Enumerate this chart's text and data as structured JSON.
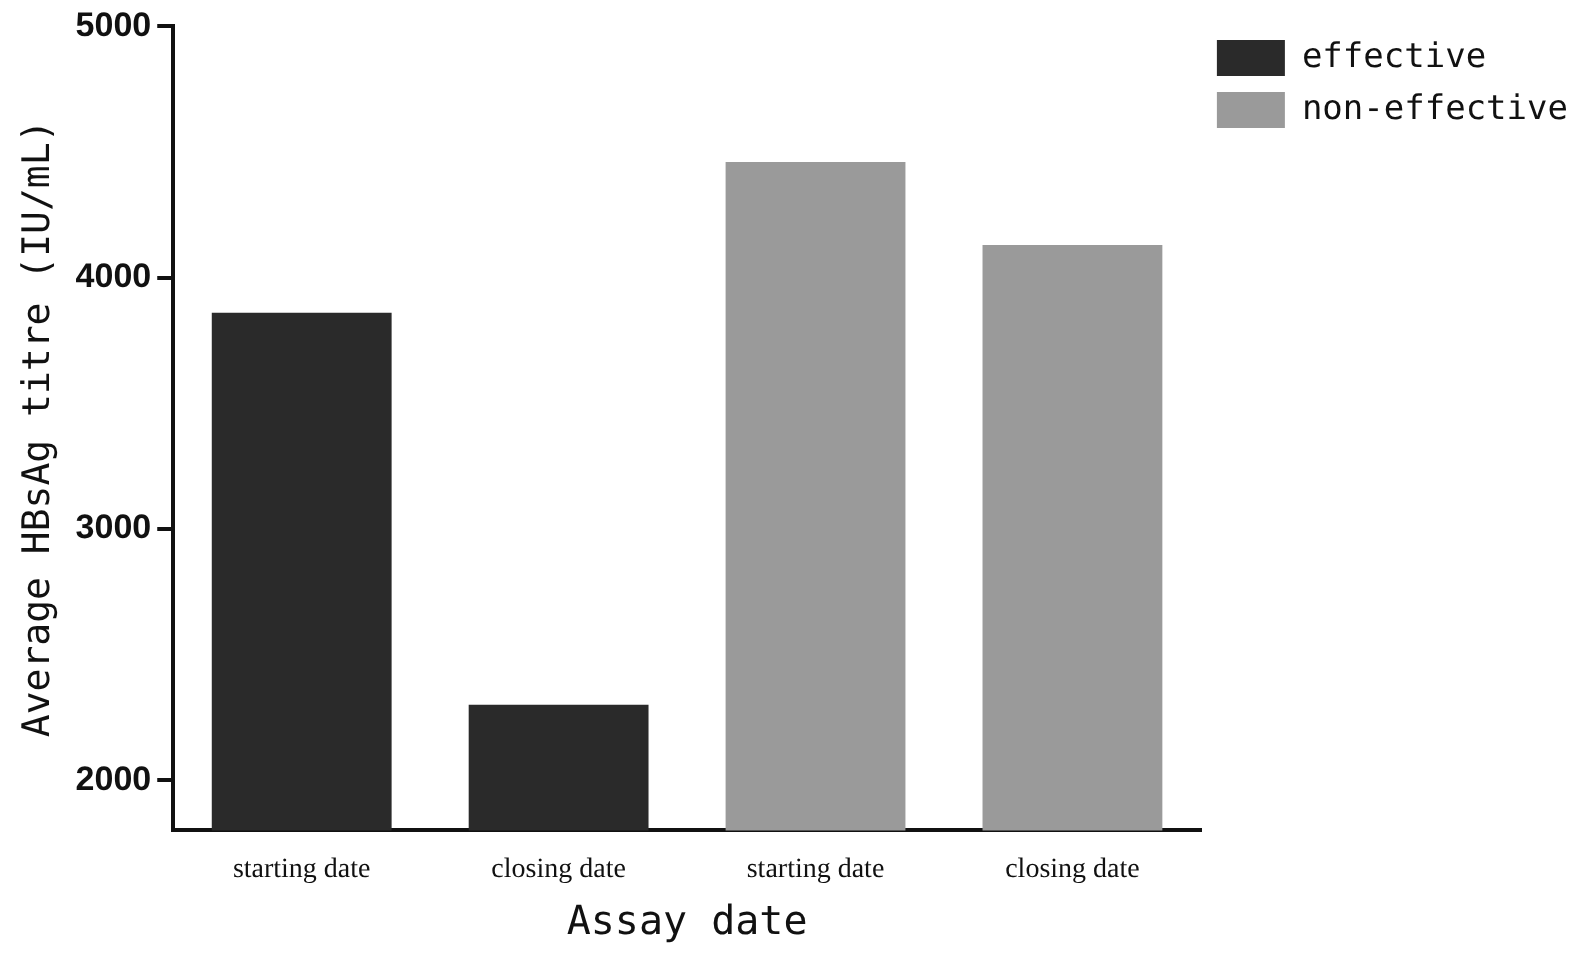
{
  "chart_data": {
    "type": "bar",
    "xlabel": "Assay date",
    "ylabel": "Average HBsAg titre (IU/mL)",
    "categories": [
      "starting date",
      "closing date",
      "starting date",
      "closing date"
    ],
    "series": [
      {
        "name": "effective",
        "color": "#2a2a2a",
        "values": [
          3860,
          2300,
          null,
          null
        ]
      },
      {
        "name": "non-effective",
        "color": "#9a9a9a",
        "values": [
          null,
          null,
          4460,
          4130
        ]
      }
    ],
    "ylim": [
      1800,
      5000
    ],
    "yticks": [
      2000,
      3000,
      4000,
      5000
    ],
    "grid": false,
    "legend": "right"
  }
}
